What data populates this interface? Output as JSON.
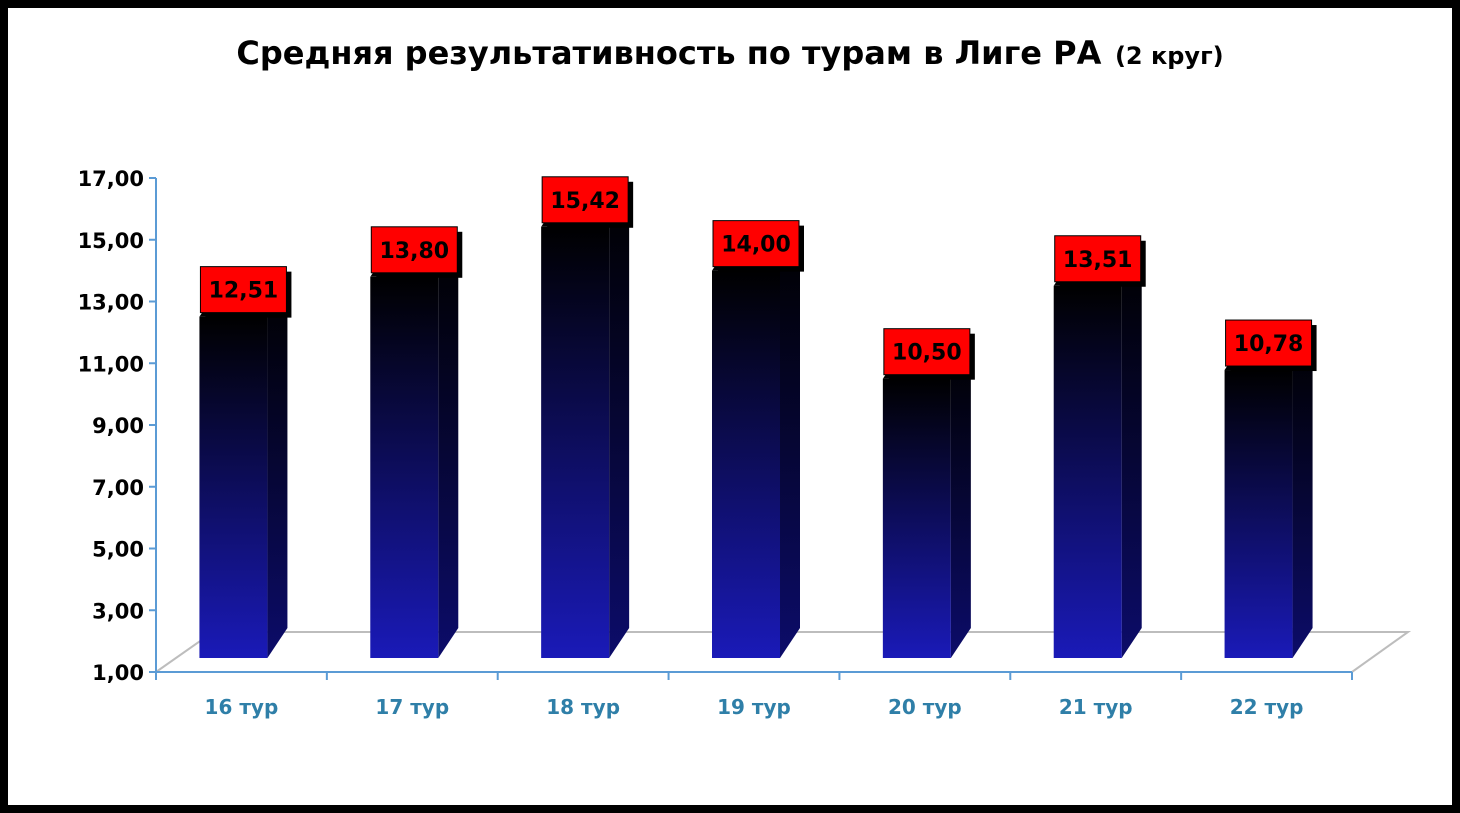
{
  "chart_data": {
    "type": "bar",
    "title": "Средняя результативность по турам в Лиге РА",
    "subtitle": "(2 круг)",
    "categories": [
      "16 тур",
      "17 тур",
      "18 тур",
      "19 тур",
      "20 тур",
      "21 тур",
      "22 тур"
    ],
    "values": [
      12.51,
      13.8,
      15.42,
      14.0,
      10.5,
      13.51,
      10.78
    ],
    "data_labels": [
      "12,51",
      "13,80",
      "15,42",
      "14,00",
      "10,50",
      "13,51",
      "10,78"
    ],
    "y_tick_labels": [
      "1,00",
      "3,00",
      "5,00",
      "7,00",
      "9,00",
      "11,00",
      "13,00",
      "15,00",
      "17,00"
    ],
    "y_ticks": [
      1,
      3,
      5,
      7,
      9,
      11,
      13,
      15,
      17
    ],
    "ylim": [
      1,
      17
    ],
    "xlabel": "",
    "ylabel": "",
    "grid": false,
    "legend": "none",
    "colors": {
      "bar_bottom": "#1a1ab8",
      "bar_top": "#000000",
      "label_box": "#ff0000",
      "label_text": "#000000",
      "x_tick_text": "#2f7fa8",
      "axis": "#5b9bd5"
    }
  }
}
